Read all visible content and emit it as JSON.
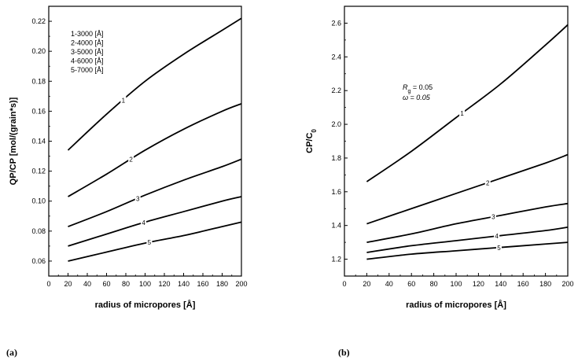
{
  "chart_data": [
    {
      "type": "line",
      "panel_label": "(a)",
      "xlabel": "radius of micropores [Å]",
      "ylabel": "QP/CP [mol/(grain*s)]",
      "xlim": [
        0,
        200
      ],
      "ylim": [
        0.05,
        0.23
      ],
      "xticks": [
        "0",
        "20",
        "40",
        "60",
        "80",
        "100",
        "120",
        "140",
        "160",
        "180",
        "200"
      ],
      "yticks": [
        "0.06",
        "0.08",
        "0.10",
        "0.12",
        "0.14",
        "0.16",
        "0.18",
        "0.20",
        "0.22"
      ],
      "legend_position": "top-left",
      "legend": [
        "1-3000 [Å]",
        "2-4000 [Å]",
        "3-5000 [Å]",
        "4-6000 [Å]",
        "5-7000 [Å]"
      ],
      "annotations": [],
      "series": [
        {
          "name": "1",
          "x": [
            20,
            60,
            100,
            140,
            180,
            200
          ],
          "y": [
            0.134,
            0.158,
            0.18,
            0.198,
            0.214,
            0.222
          ],
          "label_x": 77
        },
        {
          "name": "2",
          "x": [
            20,
            60,
            100,
            140,
            180,
            200
          ],
          "y": [
            0.103,
            0.118,
            0.134,
            0.148,
            0.16,
            0.165
          ],
          "label_x": 85
        },
        {
          "name": "3",
          "x": [
            20,
            60,
            100,
            140,
            180,
            200
          ],
          "y": [
            0.083,
            0.093,
            0.104,
            0.114,
            0.123,
            0.128
          ],
          "label_x": 92
        },
        {
          "name": "4",
          "x": [
            20,
            60,
            100,
            140,
            180,
            200
          ],
          "y": [
            0.07,
            0.078,
            0.086,
            0.093,
            0.1,
            0.103
          ],
          "label_x": 98
        },
        {
          "name": "5",
          "x": [
            20,
            60,
            100,
            140,
            180,
            200
          ],
          "y": [
            0.06,
            0.066,
            0.072,
            0.077,
            0.083,
            0.086
          ],
          "label_x": 104
        }
      ]
    },
    {
      "type": "line",
      "panel_label": "(b)",
      "xlabel": "radius of micropores [Å]",
      "ylabel": "CP/C0",
      "xlim": [
        0,
        200
      ],
      "ylim": [
        1.1,
        2.7
      ],
      "xticks": [
        "0",
        "20",
        "40",
        "60",
        "80",
        "100",
        "120",
        "140",
        "160",
        "180",
        "200"
      ],
      "yticks": [
        "1.2",
        "1.4",
        "1.6",
        "1.8",
        "2.0",
        "2.2",
        "2.4",
        "2.6"
      ],
      "legend": [],
      "annotations": [
        "Rg = 0.05",
        "ω = 0.05"
      ],
      "series": [
        {
          "name": "1",
          "x": [
            20,
            60,
            100,
            140,
            180,
            200
          ],
          "y": [
            1.66,
            1.84,
            2.04,
            2.24,
            2.47,
            2.59
          ],
          "label_x": 105
        },
        {
          "name": "2",
          "x": [
            20,
            60,
            100,
            140,
            180,
            200
          ],
          "y": [
            1.41,
            1.5,
            1.59,
            1.68,
            1.77,
            1.82
          ],
          "label_x": 128
        },
        {
          "name": "3",
          "x": [
            20,
            60,
            100,
            140,
            180,
            200
          ],
          "y": [
            1.3,
            1.35,
            1.41,
            1.46,
            1.51,
            1.53
          ],
          "label_x": 133
        },
        {
          "name": "4",
          "x": [
            20,
            60,
            100,
            140,
            180,
            200
          ],
          "y": [
            1.24,
            1.28,
            1.31,
            1.34,
            1.37,
            1.39
          ],
          "label_x": 136
        },
        {
          "name": "5",
          "x": [
            20,
            60,
            100,
            140,
            180,
            200
          ],
          "y": [
            1.2,
            1.23,
            1.25,
            1.27,
            1.29,
            1.3
          ],
          "label_x": 138
        }
      ]
    }
  ]
}
